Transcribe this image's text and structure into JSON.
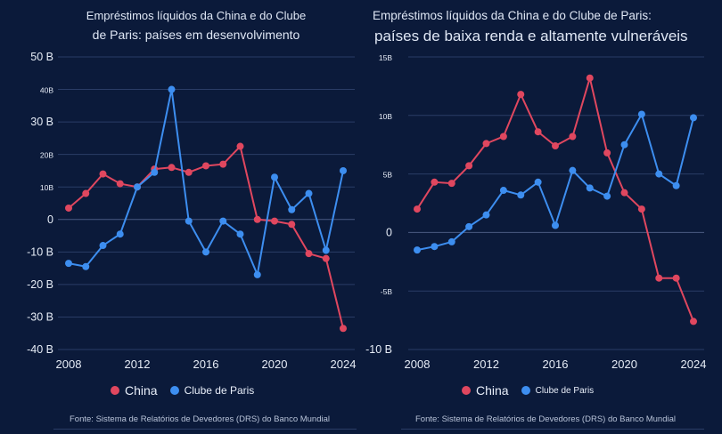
{
  "chart_data": [
    {
      "type": "line",
      "title_line1": "Empréstimos líquidos da China e do Clube",
      "title_line2": "de Paris: países em desenvolvimento",
      "x": [
        2008,
        2009,
        2010,
        2011,
        2012,
        2013,
        2014,
        2015,
        2016,
        2017,
        2018,
        2019,
        2020,
        2021,
        2022,
        2023,
        2024
      ],
      "xticks": [
        "2008",
        "2012",
        "2016",
        "2020",
        "2024"
      ],
      "yticks": [
        {
          "v": 50,
          "label": "50 B"
        },
        {
          "v": 40,
          "label": "40B"
        },
        {
          "v": 30,
          "label": "30 B"
        },
        {
          "v": 20,
          "label": "20B"
        },
        {
          "v": 10,
          "label": "10B"
        },
        {
          "v": 0,
          "label": "0"
        },
        {
          "v": -10,
          "label": "-10 B"
        },
        {
          "v": -20,
          "label": "-20 B"
        },
        {
          "v": -30,
          "label": "-30 B"
        },
        {
          "v": -40,
          "label": "-40 B"
        }
      ],
      "ylim": [
        -40,
        50
      ],
      "series": [
        {
          "name": "China",
          "color": "#e0475f",
          "values": [
            3.5,
            8,
            14,
            11,
            10,
            15.5,
            16,
            14.5,
            16.5,
            17,
            22.5,
            0,
            -0.5,
            -1.5,
            -10.5,
            -12,
            -33.5
          ]
        },
        {
          "name": "Clube de Paris",
          "color": "#3d8ef0",
          "values": [
            -13.5,
            -14.5,
            -8,
            -4.5,
            10,
            14.5,
            40,
            -0.5,
            -10,
            -0.5,
            -4.5,
            -17,
            13,
            3,
            8,
            -9.5,
            15
          ]
        }
      ]
    },
    {
      "type": "line",
      "title_line1": "Empréstimos líquidos da China e do Clube de Paris:",
      "title_line2": "países de baixa renda e altamente vulneráveis",
      "x": [
        2008,
        2009,
        2010,
        2011,
        2012,
        2013,
        2014,
        2015,
        2016,
        2017,
        2018,
        2019,
        2020,
        2021,
        2022,
        2023,
        2024
      ],
      "xticks": [
        "2008",
        "2012",
        "2016",
        "2020",
        "2024"
      ],
      "yticks": [
        {
          "v": 15,
          "label": "15B"
        },
        {
          "v": 10,
          "label": "10B"
        },
        {
          "v": 5,
          "label": "5B"
        },
        {
          "v": 0,
          "label": "0"
        },
        {
          "v": -5,
          "label": "-5B"
        },
        {
          "v": -10,
          "label": "-10 B"
        }
      ],
      "ylim": [
        -10,
        15
      ],
      "series": [
        {
          "name": "China",
          "color": "#e0475f",
          "values": [
            2,
            4.3,
            4.2,
            5.7,
            7.6,
            8.2,
            11.8,
            8.6,
            7.4,
            8.2,
            13.2,
            6.8,
            3.4,
            2,
            -3.9,
            -3.9,
            -7.6
          ]
        },
        {
          "name": "Clube de Paris",
          "color": "#3d8ef0",
          "values": [
            -1.5,
            -1.2,
            -0.8,
            0.5,
            1.5,
            3.6,
            3.2,
            4.3,
            0.6,
            5.3,
            3.8,
            3.1,
            7.5,
            10.1,
            5,
            4,
            9.8
          ]
        }
      ]
    }
  ],
  "legend": {
    "china": "China",
    "paris": "Clube de Paris"
  },
  "source": "Fonte: Sistema de Relatórios de Devedores (DRS) do Banco Mundial"
}
